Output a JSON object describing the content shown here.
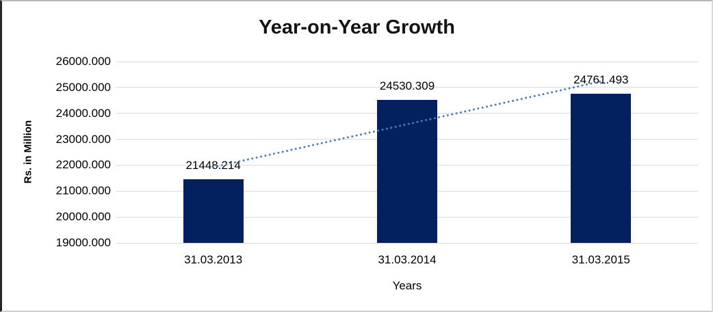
{
  "chart_data": {
    "type": "bar",
    "title": "Year-on-Year Growth",
    "xlabel": "Years",
    "ylabel": "Rs. in Million",
    "categories": [
      "31.03.2013",
      "31.03.2014",
      "31.03.2015"
    ],
    "values": [
      21448.214,
      24530.309,
      24761.493
    ],
    "value_labels": [
      "21448.214",
      "24530.309",
      "24761.493"
    ],
    "ylim": [
      19000,
      26000
    ],
    "ytick_step": 1000,
    "ytick_labels": [
      "26000.000",
      "25000.000",
      "24000.000",
      "23000.000",
      "22000.000",
      "21000.000",
      "20000.000",
      "19000.000"
    ],
    "grid": true,
    "legend": "none",
    "trendline": {
      "type": "linear",
      "style": "dotted"
    },
    "colors": {
      "bar": "#03215e",
      "gridline": "#d9d9d9",
      "trendline": "#4a7ebb",
      "text": "#000000"
    }
  }
}
